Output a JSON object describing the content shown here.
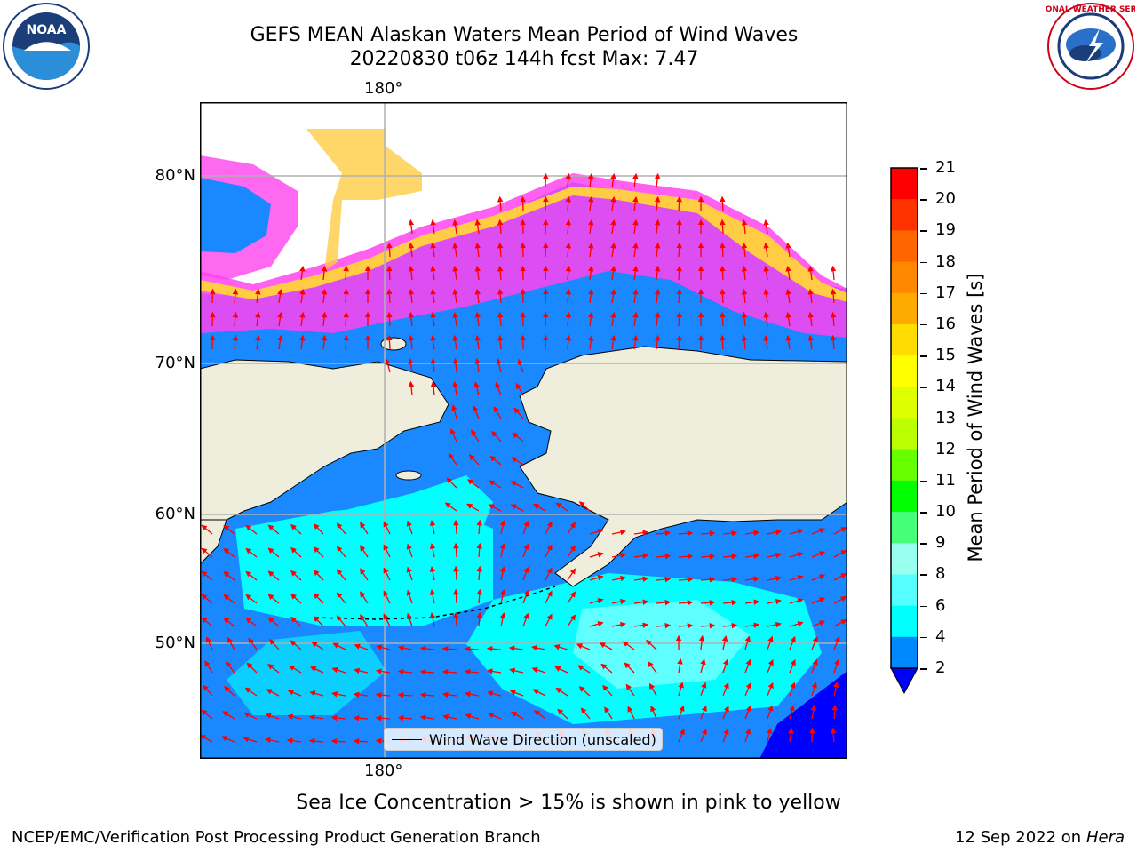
{
  "title_line1": "GEFS MEAN Alaskan Waters Mean Period of Wind Waves",
  "title_line2": "20220830 t06z 144h fcst   Max: 7.47",
  "longitude_label_top": "180°",
  "longitude_label_bottom": "180°",
  "latitude_labels": [
    "80°N",
    "70°N",
    "60°N",
    "50°N"
  ],
  "legend_label": "Wind Wave Direction (unscaled)",
  "colorbar": {
    "title": "Mean Period of Wind Waves [s]",
    "tick_labels": [
      "21",
      "20",
      "19",
      "18",
      "17",
      "16",
      "15",
      "14",
      "13",
      "12",
      "11",
      "10",
      "9",
      "8",
      "6",
      "4",
      "2"
    ],
    "colors": [
      "#ff0000",
      "#ff3300",
      "#ff6600",
      "#ff8800",
      "#ffaa00",
      "#ffdd00",
      "#ffff00",
      "#ddff00",
      "#bbff00",
      "#66ff00",
      "#00ff00",
      "#44ff77",
      "#99ffee",
      "#55ffff",
      "#00ffff",
      "#0088ff",
      "#0000ff"
    ]
  },
  "caption": "Sea Ice Concentration > 15% is shown in pink to yellow",
  "footer_left": "NCEP/EMC/Verification Post Processing Product Generation Branch",
  "footer_right_prefix": "12 Sep 2022 on",
  "footer_right_host": "Hera",
  "logos": {
    "noaa_text": "NOAA",
    "nws_text": "NATIONAL WEATHER SERVICE"
  },
  "colors": {
    "ocean_base": "#1a88ff",
    "ocean_light": "#00ffff",
    "ocean_pale": "#88ffff",
    "ocean_deep": "#0000ff",
    "land": "#efeedc",
    "ice_pink": "#ff44ee",
    "ice_yellow": "#ffcc44",
    "arrow": "#ff0000",
    "grid": "#b0b0b0"
  }
}
